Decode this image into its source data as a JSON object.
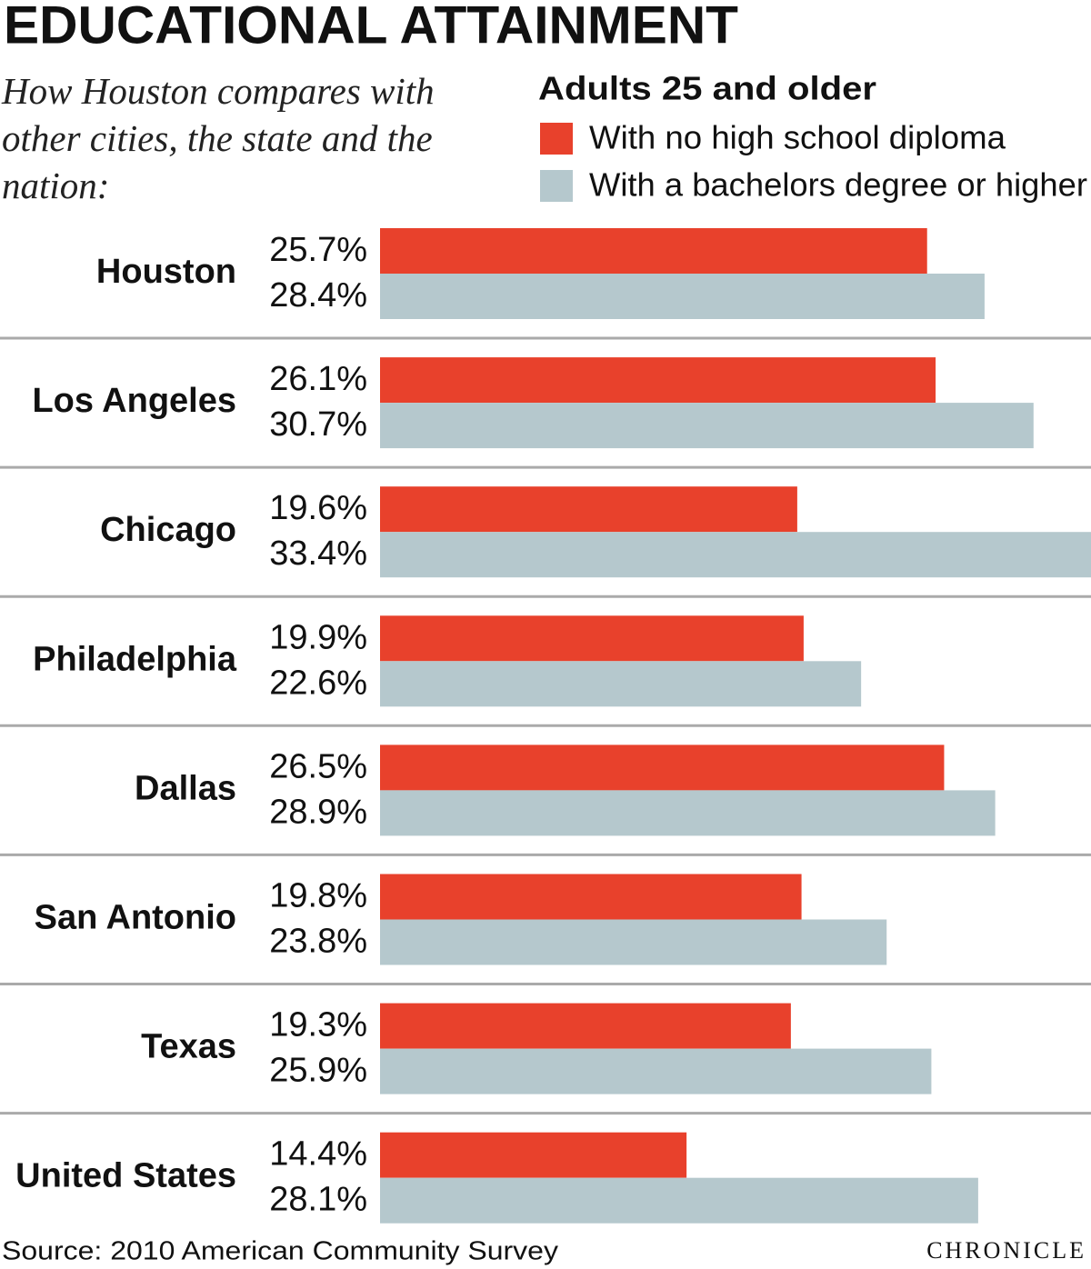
{
  "chart_data": {
    "type": "bar",
    "orientation": "horizontal",
    "title": "EDUCATIONAL ATTAINMENT",
    "subtitle": "How Houston compares with other cities, the state and the nation:",
    "legend_title": "Adults 25 and older",
    "categories": [
      "Houston",
      "Los Angeles",
      "Chicago",
      "Philadelphia",
      "Dallas",
      "San Antonio",
      "Texas",
      "United States"
    ],
    "series": [
      {
        "name": "With no high school diploma",
        "color": "#e8412c",
        "values": [
          25.7,
          26.1,
          19.6,
          19.9,
          26.5,
          19.8,
          19.3,
          14.4
        ],
        "value_labels": [
          "25.7%",
          "26.1%",
          "19.6%",
          "19.9%",
          "26.5%",
          "19.8%",
          "19.3%",
          "14.4%"
        ]
      },
      {
        "name": "With a bachelors degree or higher",
        "color": "#b5c8cd",
        "values": [
          28.4,
          30.7,
          33.4,
          22.6,
          28.9,
          23.8,
          25.9,
          28.1
        ],
        "value_labels": [
          "28.4%",
          "30.7%",
          "33.4%",
          "22.6%",
          "28.9%",
          "23.8%",
          "25.9%",
          "28.1%"
        ]
      }
    ],
    "source": "Source: 2010 American Community Survey",
    "credit": "CHRONICLE"
  }
}
